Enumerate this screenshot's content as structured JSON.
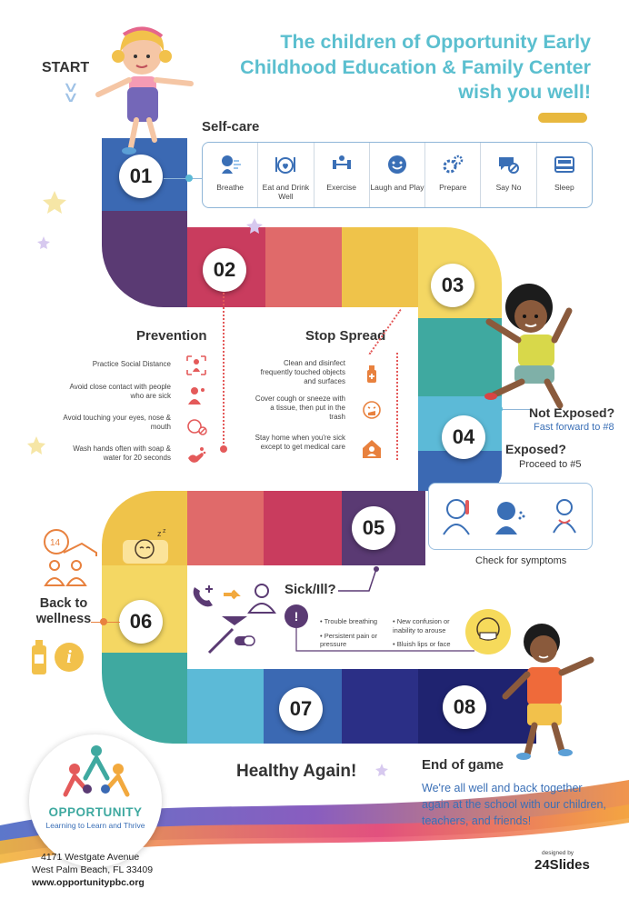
{
  "title": "The children of Opportunity Early Childhood Education & Family Center wish you well!",
  "start_label": "START",
  "steps": {
    "s01": "01",
    "s02": "02",
    "s03": "03",
    "s04": "04",
    "s05": "05",
    "s06": "06",
    "s07": "07",
    "s08": "08"
  },
  "selfcare": {
    "heading": "Self-care",
    "items": [
      {
        "label": "Breathe",
        "icon": "breathe-icon"
      },
      {
        "label": "Eat and Drink Well",
        "icon": "food-icon"
      },
      {
        "label": "Exercise",
        "icon": "dumbbell-icon"
      },
      {
        "label": "Laugh and Play",
        "icon": "smile-icon"
      },
      {
        "label": "Prepare",
        "icon": "gears-icon"
      },
      {
        "label": "Say No",
        "icon": "speech-no-icon"
      },
      {
        "label": "Sleep",
        "icon": "bed-icon"
      }
    ]
  },
  "prevention": {
    "heading": "Prevention",
    "items": [
      "Practice Social Distance",
      "Avoid close contact with people who are sick",
      "Avoid touching your eyes, nose & mouth",
      "Wash hands often with soap & water for 20 seconds"
    ]
  },
  "stop_spread": {
    "heading": "Stop Spread",
    "items": [
      "Clean and disinfect frequently touched objects and surfaces",
      "Cover cough or sneeze with a tissue, then put in the trash",
      "Stay home when you're sick except to get medical care"
    ]
  },
  "not_exposed": {
    "heading": "Not Exposed?",
    "text": "Fast forward to #8"
  },
  "exposed": {
    "heading": "Exposed?",
    "text": "Proceed to #5"
  },
  "symptoms_label": "Check for symptoms",
  "sick": {
    "heading": "Sick/Ill?",
    "symptoms_left": [
      "Trouble breathing",
      "Persistent pain or pressure"
    ],
    "symptoms_right": [
      "New confusion or inability to arouse",
      "Bluish lips or face"
    ]
  },
  "back_to_wellness": "Back to wellness",
  "healthy_again": "Healthy Again!",
  "end": {
    "heading": "End of game",
    "text": "We're all well and back together again at the school with our children, teachers, and friends!"
  },
  "logo": {
    "name": "OPPORTUNITY",
    "tagline": "Learning to Learn and Thrive"
  },
  "address": {
    "line1": "4171 Westgate Avenue",
    "line2": "West Palm Beach, FL 33409",
    "website": "www.opportunitypbc.org"
  },
  "designer": {
    "small": "designed by",
    "name": "24Slides"
  },
  "colors": {
    "teal_title": "#5bbfcf",
    "red_icon": "#e45a5a",
    "blue_text": "#3a6fb6",
    "path_blue": "#3b69b3",
    "path_purple": "#5a3a73",
    "path_red": "#c93c5e",
    "path_coral": "#e06a6a",
    "path_yellow": "#efc34a",
    "path_teal": "#3fa9a0",
    "path_navy": "#2b2f86"
  }
}
